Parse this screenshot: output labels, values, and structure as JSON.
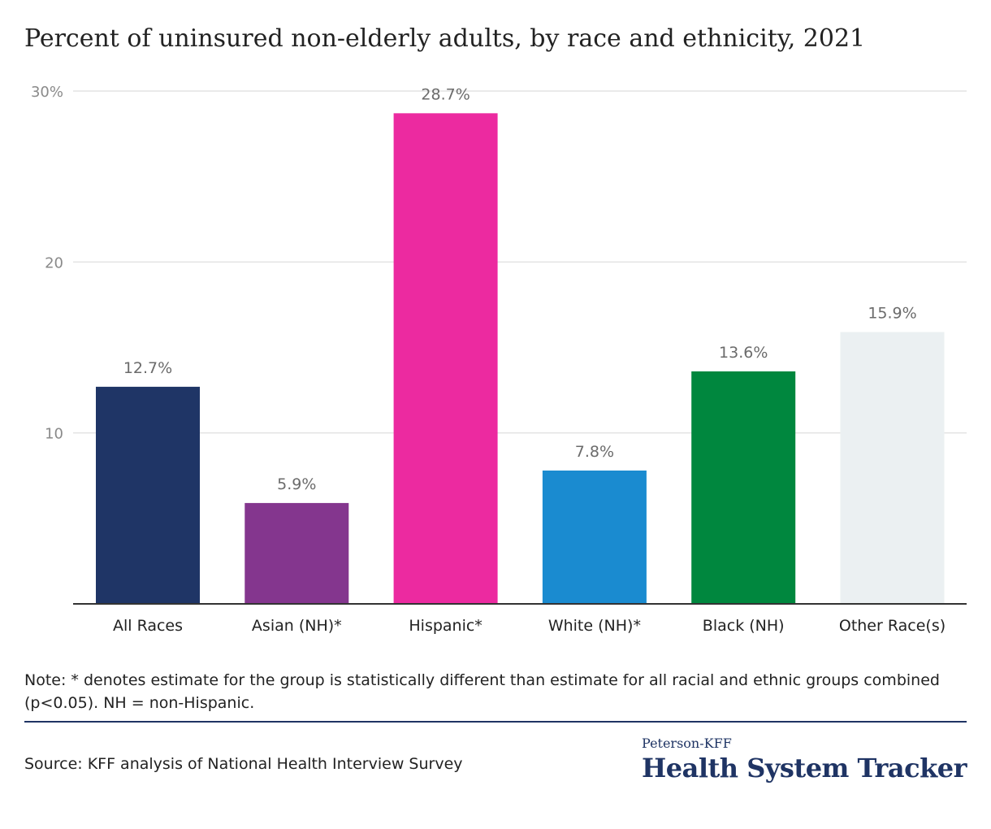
{
  "title": "Percent of uninsured non-elderly adults, by race and ethnicity, 2021",
  "note": "Note: * denotes estimate for the group is statistically different than estimate for all racial and ethnic groups combined (p<0.05). NH = non-Hispanic.",
  "source": "Source: KFF analysis of National Health Interview Survey",
  "logo": {
    "top": "Peterson-KFF",
    "main": "Health System Tracker"
  },
  "colors": {
    "divider": "#1f3464",
    "grid": "#e3e3e3",
    "axis": "#333333"
  },
  "chart_data": {
    "type": "bar",
    "title": "Percent of uninsured non-elderly adults, by race and ethnicity, 2021",
    "xlabel": "",
    "ylabel": "",
    "ylim": [
      0,
      30
    ],
    "yticks": [
      {
        "value": 10,
        "label": "10"
      },
      {
        "value": 20,
        "label": "20"
      },
      {
        "value": 30,
        "label": "30%"
      }
    ],
    "grid": true,
    "categories": [
      "All Races",
      "Asian (NH)*",
      "Hispanic*",
      "White (NH)*",
      "Black (NH)",
      "Other Race(s)"
    ],
    "values": [
      12.7,
      5.9,
      28.7,
      7.8,
      13.6,
      15.9
    ],
    "data_labels": [
      "12.7%",
      "5.9%",
      "28.7%",
      "7.8%",
      "13.6%",
      "15.9%"
    ],
    "bar_colors": [
      "#1f3566",
      "#84368e",
      "#ec2aa0",
      "#1a8bd0",
      "#00873e",
      "#ebf0f2"
    ]
  }
}
